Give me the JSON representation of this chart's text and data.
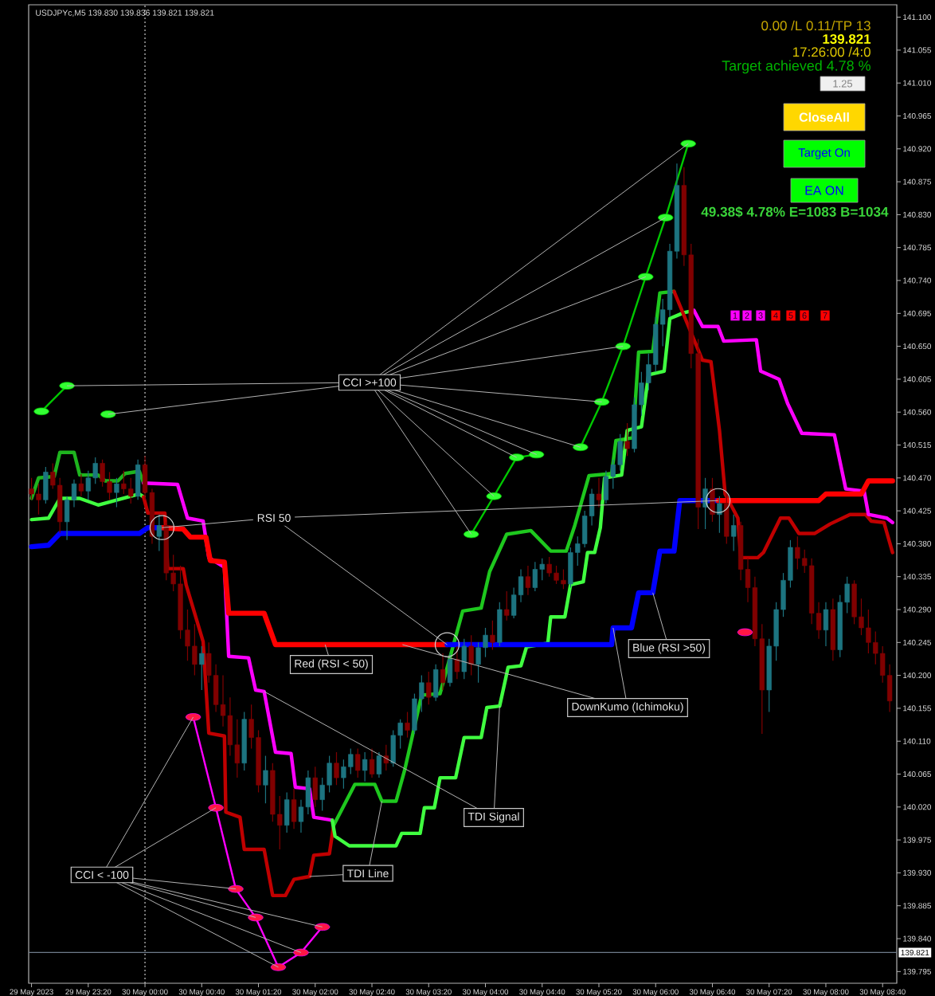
{
  "chart_data": {
    "type": "candlestick",
    "title": "USDJPYc,M5 139.830 139.836 139.821 139.821",
    "xlim": [
      "2023-05-29T22:38",
      "2023-05-30T08:50"
    ],
    "ylim": [
      139.779,
      141.117
    ],
    "xticks": [
      {
        "value": "2023-05-29T22:40",
        "label": "29 May 2023"
      },
      {
        "value": "2023-05-29T23:20",
        "label": "29 May 23:20"
      },
      {
        "value": "2023-05-30T00:00",
        "label": "30 May 00:00"
      },
      {
        "value": "2023-05-30T00:40",
        "label": "30 May 00:40"
      },
      {
        "value": "2023-05-30T01:20",
        "label": "30 May 01:20"
      },
      {
        "value": "2023-05-30T02:00",
        "label": "30 May 02:00"
      },
      {
        "value": "2023-05-30T02:40",
        "label": "30 May 02:40"
      },
      {
        "value": "2023-05-30T03:20",
        "label": "30 May 03:20"
      },
      {
        "value": "2023-05-30T04:00",
        "label": "30 May 04:00"
      },
      {
        "value": "2023-05-30T04:40",
        "label": "30 May 04:40"
      },
      {
        "value": "2023-05-30T05:20",
        "label": "30 May 05:20"
      },
      {
        "value": "2023-05-30T06:00",
        "label": "30 May 06:00"
      },
      {
        "value": "2023-05-30T06:40",
        "label": "30 May 06:40"
      },
      {
        "value": "2023-05-30T07:20",
        "label": "30 May 07:20"
      },
      {
        "value": "2023-05-30T08:00",
        "label": "30 May 08:00"
      },
      {
        "value": "2023-05-30T08:40",
        "label": "30 May 08:40"
      }
    ],
    "yticks": [
      139.795,
      {
        "value": 139.84,
        "label": "139.840"
      },
      139.885,
      {
        "value": 139.93,
        "label": "139.930"
      },
      139.975,
      {
        "value": 140.02,
        "label": "140.020"
      },
      140.065,
      {
        "value": 140.11,
        "label": "140.110"
      },
      140.155,
      {
        "value": 140.2,
        "label": "140.200"
      },
      140.245,
      {
        "value": 140.29,
        "label": "140.290"
      },
      140.335,
      {
        "value": 140.38,
        "label": "140.380"
      },
      140.425,
      {
        "value": 140.47,
        "label": "140.470"
      },
      140.515,
      {
        "value": 140.56,
        "label": "140.560"
      },
      140.605,
      {
        "value": 140.65,
        "label": "140.650"
      },
      140.695,
      {
        "value": 140.74,
        "label": "140.740"
      },
      140.785,
      {
        "value": 140.83,
        "label": "140.830"
      },
      140.875,
      {
        "value": 140.92,
        "label": "140.920"
      },
      140.965,
      {
        "value": 141.01,
        "label": "141.010"
      },
      141.055,
      {
        "value": 141.1,
        "label": "141.100"
      }
    ],
    "x": [
      "2023-05-29T22:40",
      "2023-05-29T22:45",
      "2023-05-29T22:50",
      "2023-05-29T22:55",
      "2023-05-29T23:00",
      "2023-05-29T23:05",
      "2023-05-29T23:10",
      "2023-05-29T23:15",
      "2023-05-29T23:20",
      "2023-05-29T23:25",
      "2023-05-29T23:30",
      "2023-05-29T23:35",
      "2023-05-29T23:40",
      "2023-05-29T23:45",
      "2023-05-29T23:50",
      "2023-05-29T23:55",
      "2023-05-30T00:00",
      "2023-05-30T00:05",
      "2023-05-30T00:10",
      "2023-05-30T00:15",
      "2023-05-30T00:20",
      "2023-05-30T00:25",
      "2023-05-30T00:30",
      "2023-05-30T00:35",
      "2023-05-30T00:40",
      "2023-05-30T00:45",
      "2023-05-30T00:50",
      "2023-05-30T00:55",
      "2023-05-30T01:00",
      "2023-05-30T01:05",
      "2023-05-30T01:10",
      "2023-05-30T01:15",
      "2023-05-30T01:20",
      "2023-05-30T01:25",
      "2023-05-30T01:30",
      "2023-05-30T01:35",
      "2023-05-30T01:40",
      "2023-05-30T01:45",
      "2023-05-30T01:50",
      "2023-05-30T01:55",
      "2023-05-30T02:00",
      "2023-05-30T02:05",
      "2023-05-30T02:10",
      "2023-05-30T02:15",
      "2023-05-30T02:20",
      "2023-05-30T02:25",
      "2023-05-30T02:30",
      "2023-05-30T02:35",
      "2023-05-30T02:40",
      "2023-05-30T02:45",
      "2023-05-30T02:50",
      "2023-05-30T02:55",
      "2023-05-30T03:00",
      "2023-05-30T03:05",
      "2023-05-30T03:10",
      "2023-05-30T03:15",
      "2023-05-30T03:20",
      "2023-05-30T03:25",
      "2023-05-30T03:30",
      "2023-05-30T03:35",
      "2023-05-30T03:40",
      "2023-05-30T03:45",
      "2023-05-30T03:50",
      "2023-05-30T03:55",
      "2023-05-30T04:00",
      "2023-05-30T04:05",
      "2023-05-30T04:10",
      "2023-05-30T04:15",
      "2023-05-30T04:20",
      "2023-05-30T04:25",
      "2023-05-30T04:30",
      "2023-05-30T04:35",
      "2023-05-30T04:40",
      "2023-05-30T04:45",
      "2023-05-30T04:50",
      "2023-05-30T04:55",
      "2023-05-30T05:00",
      "2023-05-30T05:05",
      "2023-05-30T05:10",
      "2023-05-30T05:15",
      "2023-05-30T05:20",
      "2023-05-30T05:25",
      "2023-05-30T05:30",
      "2023-05-30T05:35",
      "2023-05-30T05:40",
      "2023-05-30T05:45",
      "2023-05-30T05:50",
      "2023-05-30T05:55",
      "2023-05-30T06:00",
      "2023-05-30T06:05",
      "2023-05-30T06:10",
      "2023-05-30T06:15",
      "2023-05-30T06:20",
      "2023-05-30T06:25",
      "2023-05-30T06:30",
      "2023-05-30T06:35",
      "2023-05-30T06:40",
      "2023-05-30T06:45",
      "2023-05-30T06:50",
      "2023-05-30T06:55",
      "2023-05-30T07:00",
      "2023-05-30T07:05",
      "2023-05-30T07:10",
      "2023-05-30T07:15",
      "2023-05-30T07:20",
      "2023-05-30T07:25",
      "2023-05-30T07:30",
      "2023-05-30T07:35",
      "2023-05-30T07:40",
      "2023-05-30T07:45",
      "2023-05-30T07:50",
      "2023-05-30T07:55",
      "2023-05-30T08:00",
      "2023-05-30T08:05",
      "2023-05-30T08:10",
      "2023-05-30T08:15",
      "2023-05-30T08:20",
      "2023-05-30T08:25",
      "2023-05-30T08:30",
      "2023-05-30T08:35",
      "2023-05-30T08:40",
      "2023-05-30T08:45"
    ],
    "ohlc": [
      [
        140.455,
        140.47,
        140.44,
        140.448
      ],
      [
        140.448,
        140.462,
        140.42,
        140.44
      ],
      [
        140.44,
        140.485,
        140.435,
        140.478
      ],
      [
        140.478,
        140.49,
        140.455,
        140.46
      ],
      [
        140.46,
        140.47,
        140.395,
        140.41
      ],
      [
        140.41,
        140.445,
        140.385,
        140.44
      ],
      [
        140.44,
        140.468,
        140.43,
        140.462
      ],
      [
        140.462,
        140.475,
        140.445,
        140.452
      ],
      [
        140.452,
        140.48,
        140.44,
        140.47
      ],
      [
        140.47,
        140.498,
        140.462,
        140.49
      ],
      [
        140.49,
        140.495,
        140.458,
        140.465
      ],
      [
        140.465,
        140.478,
        140.44,
        140.45
      ],
      [
        140.45,
        140.47,
        140.43,
        140.462
      ],
      [
        140.462,
        140.48,
        140.448,
        140.455
      ],
      [
        140.455,
        140.47,
        140.435,
        140.445
      ],
      [
        140.445,
        140.495,
        140.44,
        140.488
      ],
      [
        140.488,
        140.5,
        140.44,
        140.45
      ],
      [
        140.45,
        140.455,
        140.38,
        140.39
      ],
      [
        140.39,
        140.42,
        140.37,
        140.405
      ],
      [
        140.405,
        140.41,
        140.33,
        140.34
      ],
      [
        140.34,
        140.365,
        140.315,
        140.325
      ],
      [
        140.325,
        140.35,
        140.25,
        140.262
      ],
      [
        140.262,
        140.29,
        140.22,
        140.24
      ],
      [
        140.24,
        140.27,
        140.2,
        140.215
      ],
      [
        140.215,
        140.24,
        140.18,
        140.23
      ],
      [
        140.23,
        140.245,
        140.19,
        140.2
      ],
      [
        140.2,
        140.215,
        140.15,
        140.16
      ],
      [
        140.16,
        140.2,
        140.13,
        140.145
      ],
      [
        140.145,
        140.17,
        140.09,
        140.105
      ],
      [
        140.105,
        140.14,
        140.06,
        140.08
      ],
      [
        140.08,
        140.15,
        140.07,
        140.14
      ],
      [
        140.14,
        140.16,
        140.1,
        140.115
      ],
      [
        140.115,
        140.125,
        140.04,
        140.05
      ],
      [
        140.05,
        140.09,
        140.025,
        140.07
      ],
      [
        140.07,
        140.08,
        140.0,
        140.01
      ],
      [
        140.01,
        140.035,
        139.962,
        139.995
      ],
      [
        139.995,
        140.04,
        139.985,
        140.03
      ],
      [
        140.03,
        140.045,
        139.99,
        140.0
      ],
      [
        140.0,
        140.03,
        139.985,
        140.02
      ],
      [
        140.02,
        140.07,
        140.01,
        140.06
      ],
      [
        140.06,
        140.075,
        140.02,
        140.03
      ],
      [
        140.03,
        140.06,
        140.015,
        140.05
      ],
      [
        140.05,
        140.09,
        140.04,
        140.08
      ],
      [
        140.08,
        140.095,
        140.05,
        140.06
      ],
      [
        140.06,
        140.085,
        140.045,
        140.075
      ],
      [
        140.075,
        140.1,
        140.065,
        140.092
      ],
      [
        140.092,
        140.1,
        140.06,
        140.07
      ],
      [
        140.07,
        140.095,
        140.055,
        140.085
      ],
      [
        140.085,
        140.1,
        140.06,
        140.065
      ],
      [
        140.065,
        140.095,
        140.06,
        140.09
      ],
      [
        140.09,
        140.105,
        140.07,
        140.08
      ],
      [
        140.08,
        140.125,
        140.075,
        140.118
      ],
      [
        140.118,
        140.14,
        140.1,
        140.135
      ],
      [
        140.135,
        140.15,
        140.115,
        140.125
      ],
      [
        140.125,
        140.175,
        140.12,
        140.168
      ],
      [
        140.168,
        140.2,
        140.15,
        140.19
      ],
      [
        140.19,
        140.205,
        140.16,
        140.17
      ],
      [
        140.17,
        140.215,
        140.165,
        140.208
      ],
      [
        140.208,
        140.23,
        140.18,
        140.19
      ],
      [
        140.19,
        140.23,
        140.185,
        140.222
      ],
      [
        140.222,
        140.24,
        140.195,
        140.205
      ],
      [
        140.205,
        140.25,
        140.195,
        140.24
      ],
      [
        140.24,
        140.255,
        140.2,
        140.215
      ],
      [
        140.215,
        140.245,
        140.19,
        140.238
      ],
      [
        140.238,
        140.265,
        140.225,
        140.255
      ],
      [
        140.255,
        140.275,
        140.235,
        140.245
      ],
      [
        140.245,
        140.3,
        140.24,
        140.29
      ],
      [
        140.29,
        140.315,
        140.275,
        140.282
      ],
      [
        140.282,
        140.32,
        140.278,
        140.31
      ],
      [
        140.31,
        140.345,
        140.3,
        140.335
      ],
      [
        140.335,
        140.35,
        140.31,
        140.32
      ],
      [
        140.32,
        140.355,
        140.315,
        140.345
      ],
      [
        140.345,
        140.36,
        140.33,
        140.352
      ],
      [
        140.352,
        140.362,
        140.335,
        140.34
      ],
      [
        140.34,
        140.35,
        140.325,
        140.33
      ],
      [
        140.33,
        140.345,
        140.318,
        140.325
      ],
      [
        140.325,
        140.375,
        140.32,
        140.368
      ],
      [
        140.368,
        140.39,
        140.35,
        140.38
      ],
      [
        140.38,
        140.425,
        140.375,
        140.418
      ],
      [
        140.418,
        140.455,
        140.405,
        140.448
      ],
      [
        140.448,
        140.47,
        140.43,
        140.44
      ],
      [
        140.44,
        140.48,
        140.435,
        140.472
      ],
      [
        140.472,
        140.495,
        140.455,
        140.488
      ],
      [
        140.488,
        140.53,
        140.48,
        140.52
      ],
      [
        140.52,
        140.545,
        140.5,
        140.51
      ],
      [
        140.51,
        140.58,
        140.505,
        140.57
      ],
      [
        140.57,
        140.615,
        140.555,
        140.6
      ],
      [
        140.6,
        140.64,
        140.59,
        140.625
      ],
      [
        140.625,
        140.69,
        140.615,
        140.68
      ],
      [
        140.68,
        140.715,
        140.65,
        140.7
      ],
      [
        140.7,
        140.79,
        140.69,
        140.78
      ],
      [
        140.78,
        140.9,
        140.77,
        140.87
      ],
      [
        140.87,
        140.895,
        140.76,
        140.775
      ],
      [
        140.775,
        140.79,
        140.62,
        140.64
      ],
      [
        140.64,
        140.66,
        140.4,
        140.43
      ],
      [
        140.43,
        140.47,
        140.4,
        140.455
      ],
      [
        140.455,
        140.47,
        140.41,
        140.42
      ],
      [
        140.42,
        140.445,
        140.395,
        140.435
      ],
      [
        140.435,
        140.45,
        140.38,
        140.39
      ],
      [
        140.39,
        140.42,
        140.37,
        140.405
      ],
      [
        140.405,
        140.41,
        140.33,
        140.345
      ],
      [
        140.345,
        140.36,
        140.3,
        140.32
      ],
      [
        140.32,
        140.335,
        140.24,
        140.25
      ],
      [
        140.25,
        140.27,
        140.12,
        140.18
      ],
      [
        140.18,
        140.25,
        140.15,
        140.24
      ],
      [
        140.24,
        140.3,
        140.22,
        140.29
      ],
      [
        140.29,
        140.34,
        140.28,
        140.33
      ],
      [
        140.33,
        140.385,
        140.32,
        140.375
      ],
      [
        140.375,
        140.39,
        140.345,
        140.36
      ],
      [
        140.36,
        140.372,
        140.34,
        140.35
      ],
      [
        140.35,
        140.36,
        140.27,
        140.285
      ],
      [
        140.285,
        140.3,
        140.25,
        140.262
      ],
      [
        140.262,
        140.3,
        140.24,
        140.29
      ],
      [
        140.29,
        140.305,
        140.22,
        140.235
      ],
      [
        140.235,
        140.31,
        140.225,
        140.3
      ],
      [
        140.3,
        140.335,
        140.285,
        140.325
      ],
      [
        140.325,
        140.33,
        140.27,
        140.28
      ],
      [
        140.28,
        140.305,
        140.255,
        140.265
      ],
      [
        140.265,
        140.29,
        140.23,
        140.245
      ],
      [
        140.245,
        140.26,
        140.215,
        140.23
      ],
      [
        140.23,
        140.24,
        140.19,
        140.2
      ],
      [
        140.2,
        140.215,
        140.15,
        140.165
      ]
    ],
    "colors": [
      "#800000",
      "#800000",
      "#1d7480",
      "#800000",
      "#800000",
      "#1d7480",
      "#1d7480",
      "#800000",
      "#1d7480",
      "#1d7480",
      "#800000",
      "#800000",
      "#1d7480",
      "#800000",
      "#800000",
      "#1d7480",
      "#800000",
      "#800000",
      "#1d7480",
      "#800000",
      "#800000",
      "#800000",
      "#800000",
      "#800000",
      "#1d7480",
      "#800000",
      "#800000",
      "#800000",
      "#800000",
      "#800000",
      "#1d7480",
      "#800000",
      "#800000",
      "#1d7480",
      "#800000",
      "#800000",
      "#1d7480",
      "#800000",
      "#1d7480",
      "#1d7480",
      "#800000",
      "#1d7480",
      "#1d7480",
      "#800000",
      "#1d7480",
      "#1d7480",
      "#800000",
      "#1d7480",
      "#800000",
      "#1d7480",
      "#800000",
      "#1d7480",
      "#1d7480",
      "#800000",
      "#1d7480",
      "#1d7480",
      "#800000",
      "#1d7480",
      "#800000",
      "#1d7480",
      "#800000",
      "#1d7480",
      "#800000",
      "#1d7480",
      "#1d7480",
      "#800000",
      "#1d7480",
      "#800000",
      "#1d7480",
      "#1d7480",
      "#800000",
      "#1d7480",
      "#1d7480",
      "#800000",
      "#800000",
      "#800000",
      "#1d7480",
      "#1d7480",
      "#1d7480",
      "#1d7480",
      "#800000",
      "#1d7480",
      "#1d7480",
      "#1d7480",
      "#800000",
      "#1d7480",
      "#1d7480",
      "#1d7480",
      "#1d7480",
      "#1d7480",
      "#1d7480",
      "#1d7480",
      "#800000",
      "#800000",
      "#800000",
      "#1d7480",
      "#800000",
      "#1d7480",
      "#800000",
      "#1d7480",
      "#800000",
      "#800000",
      "#800000",
      "#800000",
      "#1d7480",
      "#1d7480",
      "#1d7480",
      "#1d7480",
      "#800000",
      "#800000",
      "#800000",
      "#800000",
      "#1d7480",
      "#800000",
      "#1d7480",
      "#1d7480",
      "#800000",
      "#800000",
      "#800000",
      "#800000",
      "#800000",
      "#800000"
    ],
    "series": [
      {
        "type": "line",
        "color": "#1eb41e",
        "x": [
          "2023-05-29T22:40",
          "2023-05-29T22:45",
          "2023-05-29T22:56",
          "2023-05-29T23:00",
          "2023-05-29T23:10",
          "2023-05-29T23:14",
          "2023-05-29T23:27",
          "2023-05-29T23:32",
          "2023-05-29T23:41",
          "2023-05-29T23:46",
          "2023-05-29T23:56",
          "2023-05-29T23:59"
        ],
        "values": [
          140.442,
          140.47,
          140.472,
          140.505,
          140.505,
          140.474,
          140.474,
          140.466,
          140.466,
          140.476,
          140.479,
          140.463
        ]
      },
      {
        "type": "line",
        "color": "#40ff40",
        "x": [
          "2023-05-29T22:40",
          "2023-05-29T22:52",
          "2023-05-29T23:00",
          "2023-05-29T23:14",
          "2023-05-29T23:27",
          "2023-05-29T23:56",
          "2023-05-29T23:59"
        ],
        "values": [
          140.413,
          140.415,
          140.442,
          140.442,
          140.433,
          140.448,
          140.444
        ]
      },
      {
        "type": "line",
        "color": "#c00000",
        "x": [
          "2023-05-29T23:59",
          "2023-05-30T00:02",
          "2023-05-30T00:14",
          "2023-05-30T00:16",
          "2023-05-30T00:27",
          "2023-05-30T00:29",
          "2023-05-30T00:41",
          "2023-05-30T00:45",
          "2023-05-30T00:56",
          "2023-05-30T00:57",
          "2023-05-30T01:07",
          "2023-05-30T01:10",
          "2023-05-30T01:24",
          "2023-05-30T01:30",
          "2023-05-30T01:39",
          "2023-05-30T01:45",
          "2023-05-30T01:56",
          "2023-05-30T01:59",
          "2023-05-30T02:10",
          "2023-05-30T02:13"
        ],
        "values": [
          140.444,
          140.422,
          140.422,
          140.346,
          140.346,
          140.324,
          140.246,
          140.121,
          140.117,
          140.013,
          140.006,
          139.962,
          139.962,
          139.899,
          139.899,
          139.921,
          139.925,
          139.954,
          139.956,
          139.995
        ]
      },
      {
        "type": "line",
        "color": "#ff00ff",
        "x": [
          "2023-05-29T23:59",
          "2023-05-30T00:23",
          "2023-05-30T00:30",
          "2023-05-30T00:41",
          "2023-05-30T00:45",
          "2023-05-30T00:56",
          "2023-05-30T00:59",
          "2023-05-30T01:13",
          "2023-05-30T01:18",
          "2023-05-30T01:24",
          "2023-05-30T01:32",
          "2023-05-30T01:43",
          "2023-05-30T01:46",
          "2023-05-30T01:56",
          "2023-05-30T01:59",
          "2023-05-30T02:12"
        ],
        "values": [
          140.463,
          140.461,
          140.415,
          140.411,
          140.361,
          140.348,
          140.226,
          140.224,
          140.18,
          140.178,
          140.095,
          140.093,
          140.047,
          140.045,
          140.006,
          140.002
        ]
      },
      {
        "type": "line",
        "color": "#1ec81e",
        "x": [
          "2023-05-30T02:13",
          "2023-05-30T02:28",
          "2023-05-30T02:42",
          "2023-05-30T02:47",
          "2023-05-30T02:57",
          "2023-05-30T03:03",
          "2023-05-30T03:15",
          "2023-05-30T03:28",
          "2023-05-30T03:44",
          "2023-05-30T03:57",
          "2023-05-30T04:03",
          "2023-05-30T04:15",
          "2023-05-30T04:32",
          "2023-05-30T04:46",
          "2023-05-30T04:57",
          "2023-05-30T05:03",
          "2023-05-30T05:13",
          "2023-05-30T05:29",
          "2023-05-30T05:32",
          "2023-05-30T05:44",
          "2023-05-30T05:48",
          "2023-05-30T05:58",
          "2023-05-30T06:03",
          "2023-05-30T06:13"
        ],
        "values": [
          139.995,
          140.051,
          140.051,
          140.028,
          140.028,
          140.07,
          140.173,
          140.175,
          140.288,
          140.292,
          140.342,
          140.393,
          140.398,
          140.37,
          140.37,
          140.405,
          140.473,
          140.476,
          140.521,
          140.525,
          140.642,
          140.643,
          140.723,
          140.725
        ]
      },
      {
        "type": "line",
        "color": "#40ff40",
        "x": [
          "2023-05-30T02:12",
          "2023-05-30T02:14",
          "2023-05-30T02:24",
          "2023-05-30T02:57",
          "2023-05-30T03:01",
          "2023-05-30T03:14",
          "2023-05-30T03:17",
          "2023-05-30T03:24",
          "2023-05-30T03:28",
          "2023-05-30T03:39",
          "2023-05-30T03:45",
          "2023-05-30T03:57",
          "2023-05-30T04:01",
          "2023-05-30T04:10",
          "2023-05-30T04:16",
          "2023-05-30T04:25",
          "2023-05-30T04:29",
          "2023-05-30T04:44",
          "2023-05-30T04:46",
          "2023-05-30T04:56",
          "2023-05-30T05:00",
          "2023-05-30T05:09",
          "2023-05-30T05:12",
          "2023-05-30T05:17",
          "2023-05-30T05:21",
          "2023-05-30T05:24",
          "2023-05-30T05:36",
          "2023-05-30T05:40",
          "2023-05-30T05:50",
          "2023-05-30T05:55",
          "2023-05-30T06:06",
          "2023-05-30T06:10",
          "2023-05-30T06:20",
          "2023-05-30T06:27"
        ],
        "values": [
          140.002,
          139.98,
          139.967,
          139.967,
          139.984,
          139.984,
          140.019,
          140.019,
          140.06,
          140.06,
          140.115,
          140.115,
          140.156,
          140.158,
          140.211,
          140.213,
          140.239,
          140.244,
          140.28,
          140.28,
          140.324,
          140.328,
          140.368,
          140.368,
          140.402,
          140.47,
          140.474,
          140.535,
          140.54,
          140.611,
          140.616,
          140.688,
          140.696,
          140.699
        ]
      },
      {
        "type": "line",
        "color": "#c00000",
        "x": [
          "2023-05-30T06:13",
          "2023-05-30T06:33",
          "2023-05-30T06:39",
          "2023-05-30T06:45",
          "2023-05-30T06:49",
          "2023-05-30T06:58",
          "2023-05-30T07:00",
          "2023-05-30T07:12",
          "2023-05-30T07:16",
          "2023-05-30T07:28",
          "2023-05-30T07:34",
          "2023-05-30T07:41",
          "2023-05-30T07:52",
          "2023-05-30T08:03",
          "2023-05-30T08:17",
          "2023-05-30T08:28",
          "2023-05-30T08:32",
          "2023-05-30T08:41",
          "2023-05-30T08:47"
        ],
        "values": [
          140.725,
          140.631,
          140.629,
          140.535,
          140.448,
          140.415,
          140.361,
          140.361,
          140.368,
          140.415,
          140.415,
          140.394,
          140.394,
          140.407,
          140.42,
          140.42,
          140.411,
          140.409,
          140.368
        ]
      },
      {
        "type": "line",
        "color": "#ff00ff",
        "x": [
          "2023-05-30T06:27",
          "2023-05-30T06:33",
          "2023-05-30T06:44",
          "2023-05-30T06:48",
          "2023-05-30T07:11",
          "2023-05-30T07:14",
          "2023-05-30T07:27",
          "2023-05-30T07:33",
          "2023-05-30T07:43",
          "2023-05-30T08:06",
          "2023-05-30T08:14",
          "2023-05-30T08:27",
          "2023-05-30T08:30",
          "2023-05-30T08:43",
          "2023-05-30T08:47"
        ],
        "values": [
          140.699,
          140.677,
          140.677,
          140.657,
          140.659,
          140.616,
          140.605,
          140.572,
          140.531,
          140.529,
          140.455,
          140.452,
          140.42,
          140.415,
          140.409
        ]
      },
      {
        "type": "line",
        "color": "#0000ff",
        "x": [
          "2023-05-29T22:40",
          "2023-05-29T22:52",
          "2023-05-29T23:00",
          "2023-05-29T23:56",
          "2023-05-30T00:02",
          "2023-05-30T00:12"
        ],
        "values": [
          140.376,
          140.378,
          140.394,
          140.394,
          140.402,
          140.402
        ]
      },
      {
        "type": "line",
        "color": "#ff0000",
        "x": [
          "2023-05-30T00:12",
          "2023-05-30T00:27",
          "2023-05-30T00:32",
          "2023-05-30T00:43",
          "2023-05-30T00:46",
          "2023-05-30T00:56",
          "2023-05-30T00:59",
          "2023-05-30T01:24",
          "2023-05-30T01:32",
          "2023-05-30T03:33"
        ],
        "values": [
          140.402,
          140.4,
          140.389,
          140.389,
          140.357,
          140.355,
          140.285,
          140.285,
          140.242,
          140.242
        ]
      },
      {
        "type": "line",
        "color": "#0000ff",
        "x": [
          "2023-05-30T03:33",
          "2023-05-30T05:29",
          "2023-05-30T05:30",
          "2023-05-30T05:43",
          "2023-05-30T05:48",
          "2023-05-30T05:58",
          "2023-05-30T06:03",
          "2023-05-30T06:13",
          "2023-05-30T06:17",
          "2023-05-30T06:44"
        ],
        "values": [
          140.242,
          140.242,
          140.265,
          140.265,
          140.313,
          140.313,
          140.37,
          140.37,
          140.439,
          140.439
        ]
      },
      {
        "type": "line",
        "color": "#ff0000",
        "x": [
          "2023-05-30T06:44",
          "2023-05-30T07:55",
          "2023-05-30T08:00",
          "2023-05-30T08:25",
          "2023-05-30T08:30",
          "2023-05-30T08:47"
        ],
        "values": [
          140.439,
          140.439,
          140.448,
          140.448,
          140.466,
          140.466
        ]
      },
      {
        "type": "line",
        "color": "#00c800",
        "colors": [
          "#33ff33",
          "#33ff33"
        ],
        "marker": "circle",
        "x": [
          "2023-05-29T22:47",
          "2023-05-29T23:05"
        ],
        "values": [
          140.561,
          140.596
        ]
      },
      {
        "type": "line",
        "color": "#00c800",
        "colors": [
          "#33ff33"
        ],
        "marker": "circle",
        "x": [
          "2023-05-29T23:34"
        ],
        "values": [
          140.557
        ]
      },
      {
        "type": "line",
        "color": "#00c800",
        "colors": [
          "#33ff33",
          "#33ff33",
          "#33ff33",
          "#33ff33"
        ],
        "marker": "circle",
        "x": [
          "2023-05-30T03:50",
          "2023-05-30T04:06",
          "2023-05-30T04:22",
          "2023-05-30T04:36"
        ],
        "values": [
          140.393,
          140.445,
          140.498,
          140.502
        ]
      },
      {
        "type": "line",
        "color": "#00c800",
        "colors": [
          "#33ff33",
          "#33ff33",
          "#33ff33",
          "#33ff33",
          "#33ff33",
          "#33ff33"
        ],
        "marker": "circle",
        "x": [
          "2023-05-30T05:07",
          "2023-05-30T05:22",
          "2023-05-30T05:37",
          "2023-05-30T05:53",
          "2023-05-30T06:07",
          "2023-05-30T06:23"
        ],
        "values": [
          140.512,
          140.574,
          140.65,
          140.745,
          140.826,
          140.927
        ]
      },
      {
        "type": "line",
        "color": "#ff00ff",
        "colors": [
          "#ff1744",
          "#ff1744",
          "#ff1744",
          "#ff1744",
          "#ff1744",
          "#ff1744",
          "#ff1744"
        ],
        "marker": "circle",
        "x": [
          "2023-05-30T00:34",
          "2023-05-30T00:50",
          "2023-05-30T01:04",
          "2023-05-30T01:18",
          "2023-05-30T01:34",
          "2023-05-30T01:50",
          "2023-05-30T02:05"
        ],
        "values": [
          140.143,
          140.019,
          139.908,
          139.869,
          139.801,
          139.821,
          139.856
        ]
      },
      {
        "type": "line",
        "color": "#ff00ff",
        "colors": [
          "#ff1744"
        ],
        "marker": "circle",
        "x": [
          "2023-05-30T07:03"
        ],
        "values": [
          140.259
        ]
      }
    ],
    "ref_lines": [
      {
        "axis": "x",
        "value": "2023-05-30T00:00",
        "color": "#c8c8c8",
        "line_style": "dotted"
      },
      {
        "axis": "y",
        "value": 139.821,
        "label": "139.821",
        "color": "#6e7b8b"
      }
    ],
    "annotations": [
      "0.00 /L 0.11/TP 13",
      "139.821",
      "17:26:00 /4:0",
      "Target achieved 4.78 %",
      "1.25",
      "CloseAll",
      "Target On",
      "EA ON",
      "49.38$ 4.78% E=1083 B=1034",
      "1",
      "2",
      "3",
      "4",
      "5",
      "6",
      "7",
      {
        "text": "CCI >+100",
        "x": "2023-05-30T06:23",
        "y": 140.927
      },
      {
        "text": "RSI 50",
        "x": "2023-05-30T00:12",
        "y": 140.402
      },
      {
        "text": "Red (RSI < 50)",
        "x": "2023-05-30T02:07",
        "y": 140.242
      },
      {
        "text": "DownKumo (Ichimoku)",
        "x": "2023-05-30T05:30",
        "y": 140.265
      },
      {
        "text": "Blue (RSI >50)",
        "x": "2023-05-30T05:58",
        "y": 140.313
      },
      {
        "text": "TDI Signal",
        "x": "2023-05-30T04:10",
        "y": 140.158
      },
      {
        "text": "TDI Line",
        "x": "2023-05-30T02:47",
        "y": 140.028
      },
      {
        "text": "CCI < -100",
        "x": "2023-05-30T01:34",
        "y": 139.801
      }
    ]
  }
}
